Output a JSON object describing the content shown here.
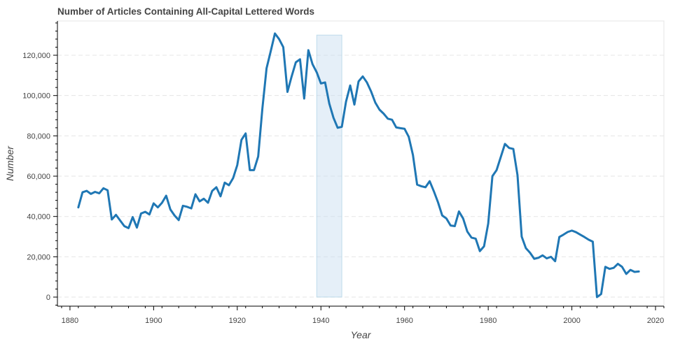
{
  "chart_data": {
    "type": "line",
    "title": "Number of Articles Containing All-Capital Lettered Words",
    "xlabel": "Year",
    "ylabel": "Number",
    "xlim": [
      1877,
      2022
    ],
    "ylim": [
      -4500,
      137000
    ],
    "x_ticks": [
      "1880",
      "1900",
      "1920",
      "1940",
      "1960",
      "1980",
      "2000",
      "2020"
    ],
    "x_tick_values": [
      1880,
      1900,
      1920,
      1940,
      1960,
      1980,
      2000,
      2020
    ],
    "y_ticks": [
      "0",
      "20,000",
      "40,000",
      "60,000",
      "80,000",
      "100,000",
      "120,000"
    ],
    "y_tick_values": [
      0,
      20000,
      40000,
      60000,
      80000,
      100000,
      120000
    ],
    "grid": "horizontal dashed",
    "line_color": "#1f77b4",
    "highlight": {
      "x_start": 1939,
      "x_end": 1945,
      "y_start": 0,
      "y_end": 130000,
      "fill": "#c6dbef",
      "stroke": "#9ecae1"
    },
    "series": [
      {
        "x": [
          1882,
          1883,
          1884,
          1885,
          1886,
          1887,
          1888,
          1889,
          1890,
          1891,
          1892,
          1893,
          1894,
          1895,
          1896,
          1897,
          1898,
          1899,
          1900,
          1901,
          1902,
          1903,
          1904,
          1905,
          1906,
          1907,
          1908,
          1909,
          1910,
          1911,
          1912,
          1913,
          1914,
          1915,
          1916,
          1917,
          1918,
          1919,
          1920,
          1921,
          1922,
          1923,
          1924,
          1925,
          1926,
          1927,
          1928,
          1929,
          1930,
          1931,
          1932,
          1933,
          1934,
          1935,
          1936,
          1937,
          1938,
          1939,
          1940,
          1941,
          1942,
          1943,
          1944,
          1945,
          1946,
          1947,
          1948,
          1949,
          1950,
          1951,
          1952,
          1953,
          1954,
          1955,
          1956,
          1957,
          1958,
          1959,
          1960,
          1961,
          1962,
          1963,
          1964,
          1965,
          1966,
          1967,
          1968,
          1969,
          1970,
          1971,
          1972,
          1973,
          1974,
          1975,
          1976,
          1977,
          1978,
          1979,
          1980,
          1981,
          1982,
          1983,
          1984,
          1985,
          1986,
          1987,
          1988,
          1989,
          1990,
          1991,
          1992,
          1993,
          1994,
          1995,
          1996,
          1997,
          1998,
          1999,
          2000,
          2001,
          2002,
          2003,
          2004,
          2005,
          2006,
          2007,
          2008,
          2009,
          2010,
          2011,
          2012,
          2013,
          2014,
          2015,
          2016
        ],
        "values": [
          44500,
          52000,
          52700,
          51200,
          52200,
          51500,
          54000,
          53000,
          38500,
          40800,
          38000,
          35200,
          34200,
          39700,
          34500,
          41500,
          42300,
          41000,
          46500,
          44500,
          46800,
          50300,
          43500,
          40500,
          38200,
          45300,
          44800,
          44000,
          51000,
          47500,
          48800,
          46800,
          52700,
          54500,
          50000,
          56800,
          55500,
          59000,
          65500,
          78000,
          81200,
          63000,
          63000,
          69800,
          93500,
          113500,
          122000,
          130800,
          128000,
          124000,
          101800,
          109500,
          116500,
          118000,
          98500,
          122500,
          115500,
          111500,
          106000,
          106500,
          96000,
          89000,
          84000,
          84500,
          97000,
          105000,
          95500,
          107000,
          109500,
          106500,
          102000,
          96500,
          93000,
          91000,
          88500,
          88000,
          84200,
          83800,
          83500,
          79500,
          70500,
          55800,
          55000,
          54500,
          57500,
          52500,
          47000,
          40500,
          39000,
          35500,
          35200,
          42500,
          39000,
          32500,
          29500,
          29000,
          22800,
          25200,
          36500,
          60000,
          63000,
          69500,
          76000,
          74000,
          73500,
          60500,
          30000,
          24300,
          22000,
          19000,
          19500,
          20700,
          19200,
          20000,
          17800,
          29800,
          31000,
          32300,
          33000,
          32200,
          31000,
          29800,
          28500,
          27500,
          0,
          1500,
          15000,
          14000,
          14500,
          16500,
          15000,
          11500,
          13500,
          12500,
          12700
        ]
      }
    ]
  }
}
